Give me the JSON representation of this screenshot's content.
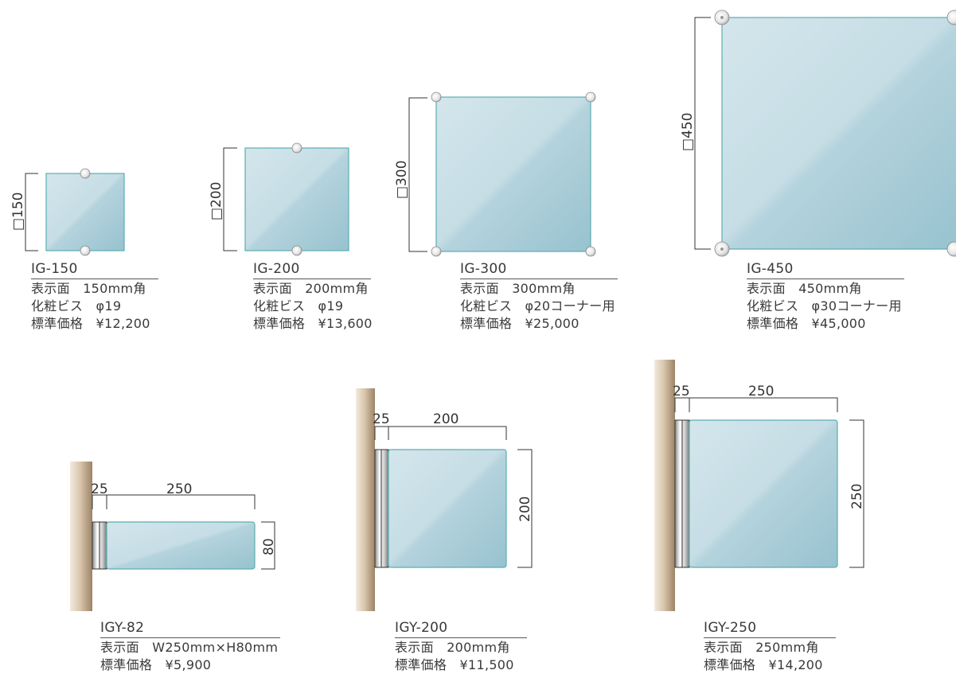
{
  "colors": {
    "glass_light": "#d0e3ea",
    "glass_dark": "#9cc5d2",
    "glass_edge": "#5aaeb0",
    "wall_dark": "#a58e6c",
    "wall_light": "#f1e8db",
    "dimension_line": "#333333"
  },
  "top_row": [
    {
      "size_label": "□150",
      "model": "IG-150",
      "display": "表示面　150mm角",
      "screw": "化粧ビス　φ19",
      "price": "標準価格　¥12,200"
    },
    {
      "size_label": "□200",
      "model": "IG-200",
      "display": "表示面　200mm角",
      "screw": "化粧ビス　φ19",
      "price": "標準価格　¥13,600"
    },
    {
      "size_label": "□300",
      "model": "IG-300",
      "display": "表示面　300mm角",
      "screw": "化粧ビス　φ20コーナー用",
      "price": "標準価格　¥25,000"
    },
    {
      "size_label": "□450",
      "model": "IG-450",
      "display": "表示面　450mm角",
      "screw": "化粧ビス　φ30コーナー用",
      "price": "標準価格　¥45,000"
    }
  ],
  "bottom_row": [
    {
      "dim_offset": "25",
      "dim_width": "250",
      "dim_height": "80",
      "model": "IGY-82",
      "display": "表示面　W250mm×H80mm",
      "price": "標準価格　¥5,900"
    },
    {
      "dim_offset": "25",
      "dim_width": "200",
      "dim_height": "200",
      "model": "IGY-200",
      "display": "表示面　200mm角",
      "price": "標準価格　¥11,500"
    },
    {
      "dim_offset": "25",
      "dim_width": "250",
      "dim_height": "250",
      "model": "IGY-250",
      "display": "表示面　250mm角",
      "price": "標準価格　¥14,200"
    }
  ]
}
